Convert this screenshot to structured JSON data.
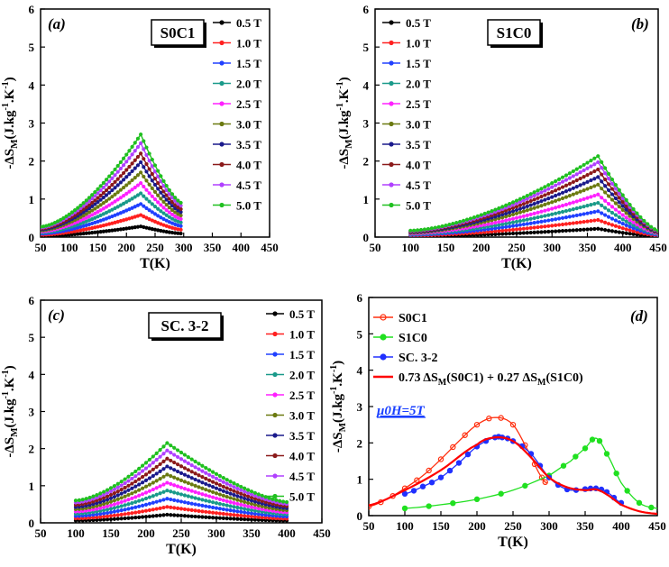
{
  "colors": {
    "0.5 T": "#000000",
    "1.0 T": "#ff2020",
    "1.5 T": "#2040ff",
    "2.0 T": "#1a9a8a",
    "2.5 T": "#ff20ff",
    "3.0 T": "#6b7a10",
    "3.5 T": "#1a1a8c",
    "4.0 T": "#8b1a1a",
    "4.5 T": "#b040ff",
    "5.0 T": "#20c020",
    "S0C1": "#ff3010",
    "S1C0": "#20e020",
    "SC. 3-2": "#2030ff",
    "fit": "#ff0000",
    "mu": "#1a40ff"
  },
  "chart_data": [
    {
      "type": "line",
      "panel_label": "(a)",
      "sample_box": "S0C1",
      "xlabel": "T(K)",
      "ylabel_main": "-ΔS",
      "ylabel_sub": "M",
      "ylabel_tail": "(J.kg",
      "ylabel_sup1": "-1",
      "ylabel_mid": ".K",
      "ylabel_sup2": "-1",
      "ylabel_end": ")",
      "xlim": [
        50,
        450
      ],
      "ylim": [
        0,
        6
      ],
      "xticks": [
        "50",
        "100",
        "150",
        "200",
        "250",
        "300",
        "350",
        "400",
        "450"
      ],
      "yticks": [
        "0",
        "1",
        "2",
        "3",
        "4",
        "5",
        "6"
      ],
      "legend": [
        "0.5 T",
        "1.0 T",
        "1.5 T",
        "2.0 T",
        "2.5 T",
        "3.0 T",
        "3.5 T",
        "4.0 T",
        "4.5 T",
        "5.0 T"
      ],
      "t_range": [
        50,
        297
      ],
      "peak_T": 225,
      "peaks": [
        0.28,
        0.58,
        0.87,
        1.15,
        1.42,
        1.7,
        1.97,
        2.2,
        2.47,
        2.7
      ],
      "base_ratio": 0.1,
      "end_ratio": 0.33
    },
    {
      "type": "line",
      "panel_label": "(b)",
      "sample_box": "S1C0",
      "xlabel": "T(K)",
      "ylabel_main": "-ΔS",
      "ylabel_sub": "M",
      "ylabel_tail": "(J.kg",
      "ylabel_sup1": "-1",
      "ylabel_mid": ".K",
      "ylabel_sup2": "-1",
      "ylabel_end": ")",
      "xlim": [
        50,
        450
      ],
      "ylim": [
        0,
        6
      ],
      "xticks": [
        "50",
        "100",
        "150",
        "200",
        "250",
        "300",
        "350",
        "400",
        "450"
      ],
      "yticks": [
        "0",
        "1",
        "2",
        "3",
        "4",
        "5",
        "6"
      ],
      "legend": [
        "0.5 T",
        "1.0 T",
        "1.5 T",
        "2.0 T",
        "2.5 T",
        "3.0 T",
        "3.5 T",
        "4.0 T",
        "4.5 T",
        "5.0 T"
      ],
      "t_range": [
        100,
        450
      ],
      "peak_T": 365,
      "peaks": [
        0.22,
        0.45,
        0.68,
        0.9,
        1.12,
        1.38,
        1.58,
        1.78,
        1.97,
        2.13
      ],
      "base_ratio": 0.08,
      "end_ratio": 0.08
    },
    {
      "type": "line",
      "panel_label": "(c)",
      "sample_box": "SC. 3-2",
      "xlabel": "T(K)",
      "ylabel_main": "-ΔS",
      "ylabel_sub": "M",
      "ylabel_tail": "(J.kg",
      "ylabel_sup1": "-1",
      "ylabel_mid": ".K",
      "ylabel_sup2": "-1",
      "ylabel_end": ")",
      "xlim": [
        50,
        450
      ],
      "ylim": [
        0,
        6
      ],
      "xticks": [
        "50",
        "100",
        "150",
        "200",
        "250",
        "300",
        "350",
        "400",
        "450"
      ],
      "yticks": [
        "0",
        "1",
        "2",
        "3",
        "4",
        "5",
        "6"
      ],
      "legend": [
        "0.5 T",
        "1.0 T",
        "1.5 T",
        "2.0 T",
        "2.5 T",
        "3.0 T",
        "3.5 T",
        "4.0 T",
        "4.5 T",
        "5.0 T"
      ],
      "t_range": [
        100,
        400
      ],
      "peak_T": 230,
      "peaks": [
        0.22,
        0.43,
        0.65,
        0.87,
        1.08,
        1.3,
        1.52,
        1.73,
        1.95,
        2.15
      ],
      "base_ratio": 0.28,
      "end_ratio": 0.26
    },
    {
      "type": "line",
      "panel_label": "(d)",
      "xlabel": "T(K)",
      "ylabel_main": "-ΔS",
      "ylabel_sub": "M",
      "ylabel_tail": "(J.kg",
      "ylabel_sup1": "-1",
      "ylabel_mid": ".K",
      "ylabel_sup2": "-1",
      "ylabel_end": ")",
      "xlim": [
        50,
        450
      ],
      "ylim": [
        0,
        6
      ],
      "xticks": [
        "50",
        "100",
        "150",
        "200",
        "250",
        "300",
        "350",
        "400",
        "450"
      ],
      "yticks": [
        "0",
        "1",
        "2",
        "3",
        "4",
        "5",
        "6"
      ],
      "annotation": "μ0H=5T",
      "fit_legend": {
        "a": "0.73 ΔS",
        "b": "(S0C1) + 0.27 ΔS",
        "c": "(S1C0)",
        "sub": "M"
      },
      "series": [
        {
          "name": "S0C1",
          "x": [
            50,
            75,
            100,
            125,
            150,
            175,
            200,
            225,
            250,
            275,
            290,
            297
          ],
          "y": [
            0.25,
            0.45,
            0.75,
            1.1,
            1.55,
            2.05,
            2.5,
            2.7,
            2.5,
            1.65,
            1.05,
            0.9
          ]
        },
        {
          "name": "S1C0",
          "x": [
            100,
            150,
            200,
            250,
            300,
            330,
            350,
            365,
            380,
            400,
            425,
            450
          ],
          "y": [
            0.2,
            0.3,
            0.45,
            0.7,
            1.1,
            1.5,
            1.85,
            2.13,
            1.7,
            0.9,
            0.35,
            0.2
          ]
        },
        {
          "name": "SC. 3-2",
          "x": [
            100,
            125,
            150,
            175,
            200,
            225,
            235,
            250,
            275,
            300,
            325,
            350,
            365,
            380,
            400
          ],
          "y": [
            0.6,
            0.8,
            1.05,
            1.45,
            1.9,
            2.15,
            2.15,
            2.05,
            1.7,
            1.05,
            0.72,
            0.73,
            0.75,
            0.65,
            0.35
          ]
        },
        {
          "name": "0.73 ΔSM(S0C1) + 0.27 ΔSM(S1C0)",
          "x": [
            50,
            100,
            150,
            200,
            225,
            250,
            275,
            300,
            325,
            350,
            365,
            380,
            400,
            425,
            450
          ],
          "y": [
            0.28,
            0.7,
            1.25,
            1.95,
            2.15,
            2.05,
            1.6,
            1.05,
            0.78,
            0.7,
            0.72,
            0.58,
            0.3,
            0.12,
            0.05
          ]
        }
      ]
    }
  ]
}
